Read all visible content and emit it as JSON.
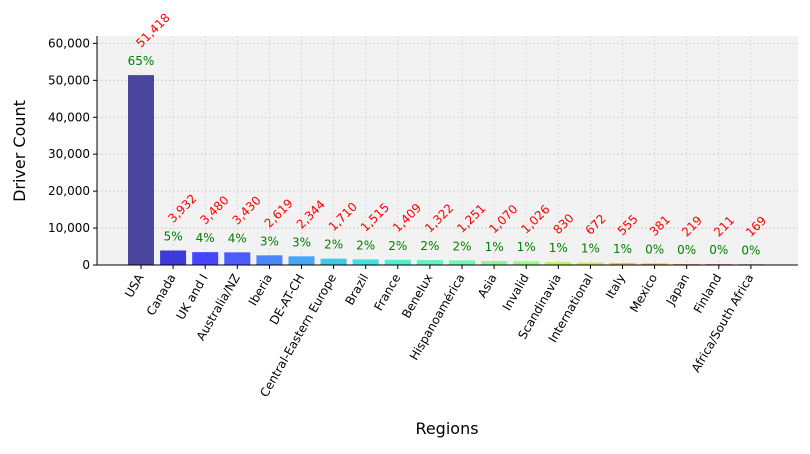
{
  "chart_data": {
    "type": "bar",
    "title": "",
    "xlabel": "Regions",
    "ylabel": "Driver Count",
    "ylim": [
      0,
      62000
    ],
    "yticks": [
      0,
      10000,
      20000,
      30000,
      40000,
      50000,
      60000
    ],
    "ytick_labels": [
      "0",
      "10,000",
      "20,000",
      "30,000",
      "40,000",
      "50,000",
      "60,000"
    ],
    "grid": "dotted, both axes",
    "background": "#f2f2f2",
    "categories": [
      "USA",
      "Canada",
      "UK and I",
      "Australia/NZ",
      "Iberia",
      "DE-AT-CH",
      "Central-Eastern Europe",
      "Brazil",
      "France",
      "Benelux",
      "Hispanoamérica",
      "Asia",
      "Invalid",
      "Scandinavia",
      "International",
      "Italy",
      "Mexico",
      "Japan",
      "Finland",
      "Africa/South Africa"
    ],
    "values": [
      51418,
      3932,
      3480,
      3430,
      2619,
      2344,
      1710,
      1515,
      1409,
      1322,
      1251,
      1070,
      1026,
      830,
      672,
      555,
      381,
      219,
      211,
      169
    ],
    "count_labels": [
      "51,418",
      "3,932",
      "3,480",
      "3,430",
      "2,619",
      "2,344",
      "1,710",
      "1,515",
      "1,409",
      "1,322",
      "1,251",
      "1,070",
      "1,026",
      "830",
      "672",
      "555",
      "381",
      "219",
      "211",
      "169"
    ],
    "percent_labels": [
      "65%",
      "5%",
      "4%",
      "4%",
      "3%",
      "3%",
      "2%",
      "2%",
      "2%",
      "2%",
      "2%",
      "1%",
      "1%",
      "1%",
      "1%",
      "1%",
      "0%",
      "0%",
      "0%",
      "0%"
    ],
    "bar_colors": [
      "#4b479e",
      "#3e3ad6",
      "#4545ff",
      "#4b5cff",
      "#4a85fc",
      "#44a6f6",
      "#3fc9e8",
      "#44dfe0",
      "#53ecd0",
      "#62f3be",
      "#70f8ab",
      "#82fb98",
      "#98fb82",
      "#b0f870",
      "#c8eb62",
      "#e3c950",
      "#ee9f47",
      "#e9703e",
      "#da4a38",
      "#c41c22"
    ],
    "count_label_color": "#ff0000",
    "percent_label_color": "#008000"
  }
}
